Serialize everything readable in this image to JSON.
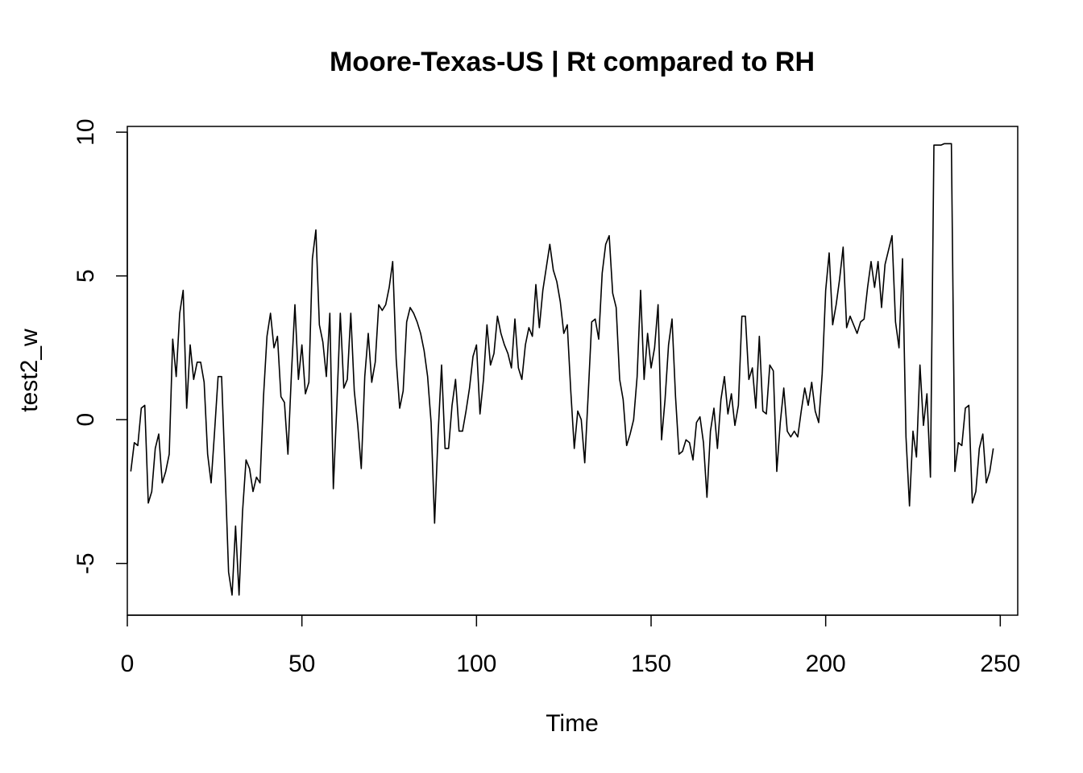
{
  "chart_data": {
    "type": "line",
    "title": "Moore-Texas-US | Rt compared to RH",
    "xlabel": "Time",
    "ylabel": "test2_w",
    "xlim": [
      0,
      255
    ],
    "ylim": [
      -6.8,
      10.2
    ],
    "x_ticks": [
      0,
      50,
      100,
      150,
      200,
      250
    ],
    "y_ticks": [
      -5,
      0,
      5,
      10
    ],
    "x_tick_labels": [
      "0",
      "50",
      "100",
      "150",
      "200",
      "250"
    ],
    "y_tick_labels": [
      "-5",
      "0",
      "5",
      "10"
    ],
    "grid": false,
    "series": [
      {
        "x_start": 1,
        "values": [
          -1.8,
          -0.8,
          -0.9,
          0.4,
          0.5,
          -2.9,
          -2.5,
          -1.0,
          -0.5,
          -2.2,
          -1.8,
          -1.2,
          2.8,
          1.5,
          3.7,
          4.5,
          0.4,
          2.6,
          1.4,
          2.0,
          2.0,
          1.3,
          -1.2,
          -2.2,
          -0.4,
          1.5,
          1.5,
          -1.8,
          -5.3,
          -6.1,
          -3.7,
          -6.1,
          -3.2,
          -1.4,
          -1.7,
          -2.5,
          -2.0,
          -2.2,
          0.8,
          2.9,
          3.7,
          2.5,
          2.9,
          0.8,
          0.6,
          -1.2,
          1.6,
          4.0,
          1.4,
          2.6,
          0.9,
          1.3,
          5.6,
          6.6,
          3.3,
          2.7,
          1.5,
          3.7,
          -2.4,
          0.5,
          3.7,
          1.1,
          1.4,
          3.7,
          1.0,
          -0.2,
          -1.7,
          1.5,
          3.0,
          1.3,
          2.0,
          4.0,
          3.8,
          4.0,
          4.6,
          5.5,
          2.1,
          0.4,
          1.0,
          3.4,
          3.9,
          3.7,
          3.4,
          3.0,
          2.4,
          1.5,
          -0.1,
          -3.6,
          -0.5,
          1.9,
          -1.0,
          -1.0,
          0.5,
          1.4,
          -0.4,
          -0.4,
          0.3,
          1.1,
          2.2,
          2.6,
          0.2,
          1.4,
          3.3,
          1.9,
          2.3,
          3.6,
          3.0,
          2.6,
          2.3,
          1.8,
          3.5,
          1.8,
          1.4,
          2.6,
          3.2,
          2.9,
          4.7,
          3.2,
          4.5,
          5.3,
          6.1,
          5.2,
          4.8,
          4.1,
          3.0,
          3.3,
          1.0,
          -1.0,
          0.3,
          0.0,
          -1.5,
          0.9,
          3.4,
          3.5,
          2.8,
          5.1,
          6.1,
          6.4,
          4.4,
          3.9,
          1.4,
          0.7,
          -0.9,
          -0.5,
          0.0,
          1.5,
          4.5,
          1.4,
          3.0,
          1.8,
          2.5,
          4.0,
          -0.7,
          0.7,
          2.6,
          3.5,
          0.8,
          -1.2,
          -1.1,
          -0.7,
          -0.8,
          -1.4,
          -0.1,
          0.1,
          -0.8,
          -2.7,
          -0.4,
          0.4,
          -1.0,
          0.7,
          1.5,
          0.2,
          0.9,
          -0.2,
          0.5,
          3.6,
          3.6,
          1.4,
          1.8,
          0.4,
          2.9,
          0.3,
          0.2,
          1.9,
          1.7,
          -1.8,
          -0.1,
          1.1,
          -0.4,
          -0.6,
          -0.4,
          -0.6,
          0.3,
          1.1,
          0.5,
          1.3,
          0.3,
          -0.1,
          1.6,
          4.5,
          5.8,
          3.3,
          4.0,
          4.9,
          6.0,
          3.2,
          3.6,
          3.3,
          3.0,
          3.4,
          3.5,
          4.6,
          5.5,
          4.6,
          5.5,
          3.9,
          5.4,
          5.9,
          6.4,
          3.4,
          2.5,
          5.6,
          -0.6,
          -3.0,
          -0.4,
          -1.3,
          1.9,
          -0.2,
          0.9,
          -2.0,
          9.55,
          9.55,
          9.55,
          9.6,
          9.6,
          9.6,
          -1.8,
          -0.8,
          -0.9,
          0.4,
          0.5,
          -2.9,
          -2.5,
          -1.0,
          -0.5,
          -2.2,
          -1.8,
          -1.0
        ]
      }
    ]
  }
}
